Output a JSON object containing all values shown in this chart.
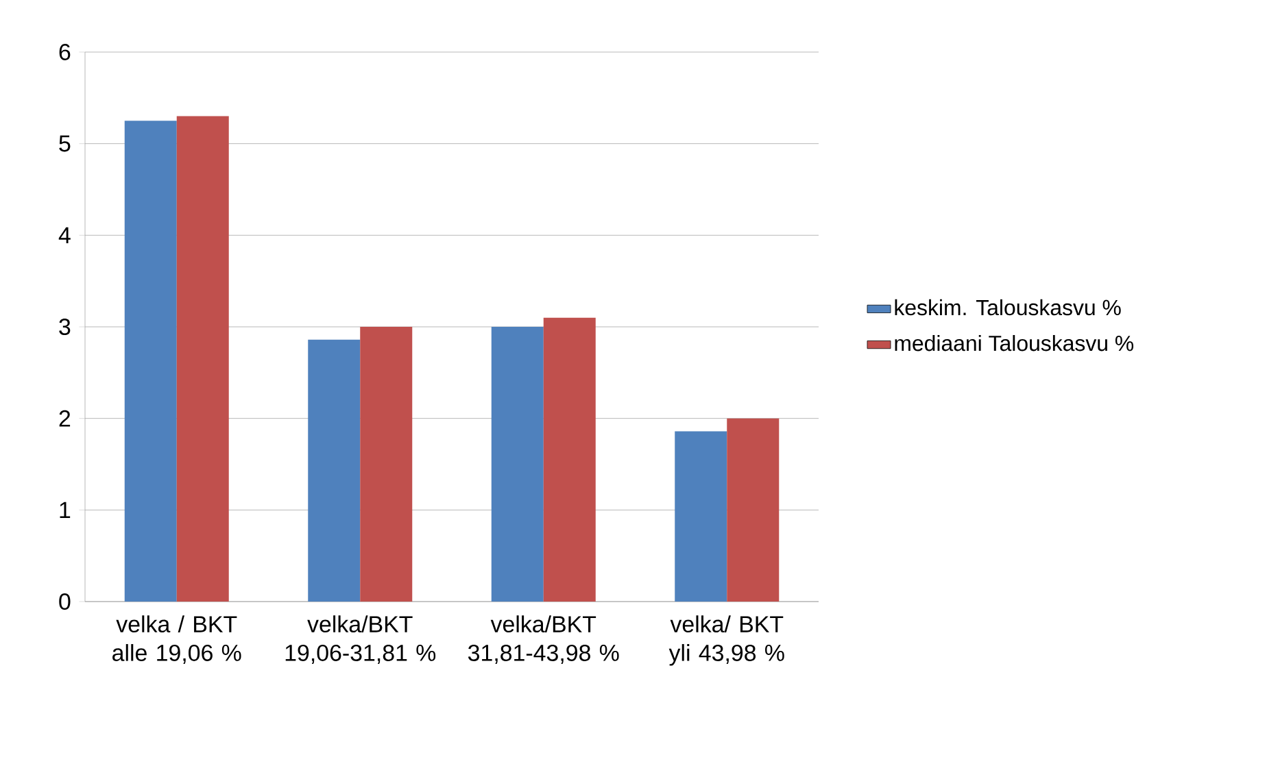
{
  "chart_data": {
    "type": "bar",
    "categories": [
      "velka / BKT alle 19,06 %",
      "velka/BKT 19,06-31,81 %",
      "velka/BKT 31,81-43,98 %",
      "velka/ BKT yli 43,98 %"
    ],
    "series": [
      {
        "name": "keskim. Talouskasvu %",
        "color": "#4f81bd",
        "values": [
          5.25,
          2.86,
          3.0,
          1.86
        ]
      },
      {
        "name": "mediaani Talouskasvu %",
        "color": "#c0504d",
        "values": [
          5.3,
          3.0,
          3.1,
          2.0
        ]
      }
    ],
    "ylim": [
      0,
      6
    ],
    "yticks": [
      0,
      1,
      2,
      3,
      4,
      5,
      6
    ],
    "grid": "y",
    "legend": "right"
  }
}
